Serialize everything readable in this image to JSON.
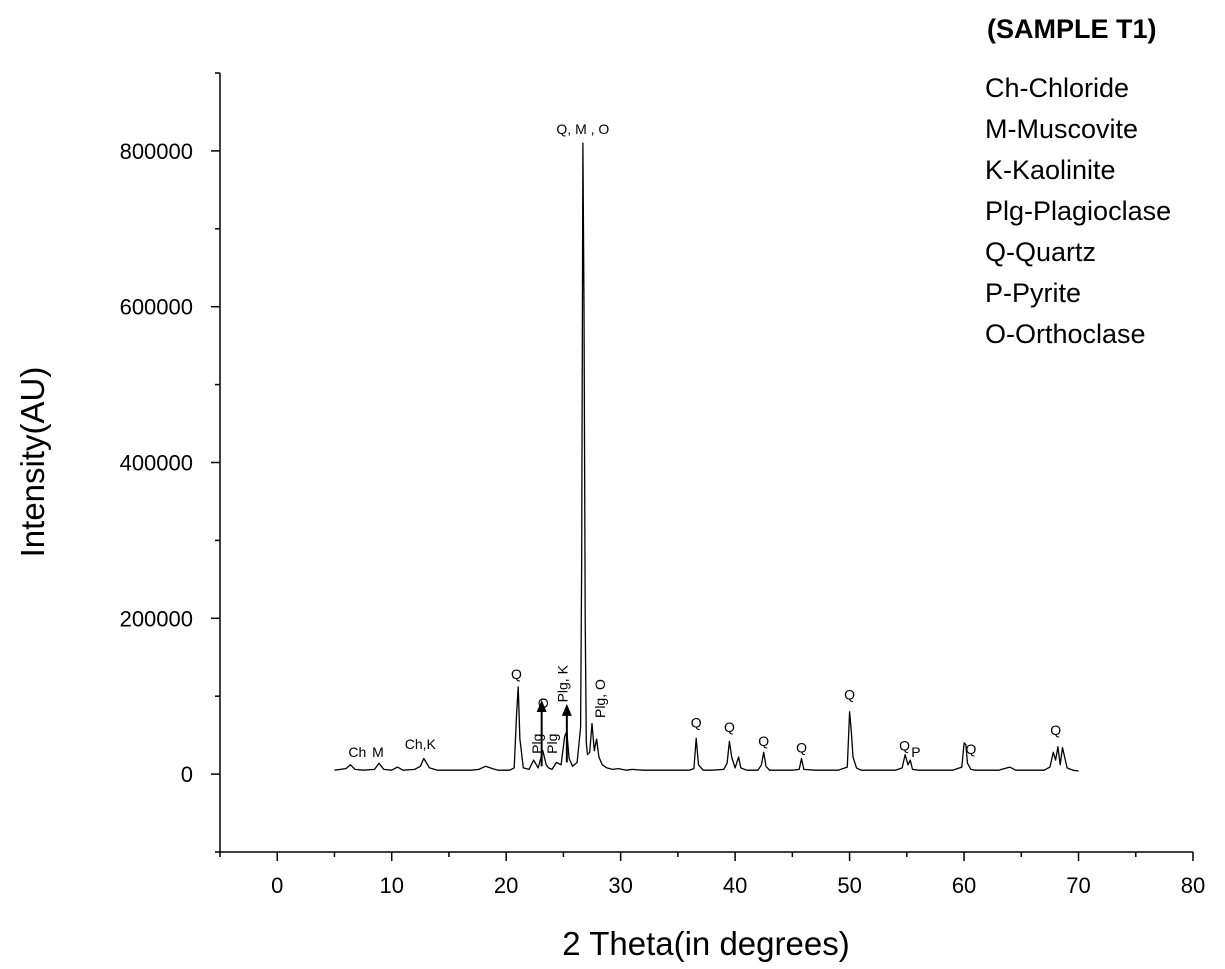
{
  "header": {
    "sample_title": "(SAMPLE T1)"
  },
  "legend": {
    "items": [
      "Ch-Chloride",
      "M-Muscovite",
      "K-Kaolinite",
      "Plg-Plagioclase",
      "Q-Quartz",
      "P-Pyrite",
      "O-Orthoclase"
    ]
  },
  "chart_data": {
    "type": "line",
    "title": "(SAMPLE T1)",
    "xlabel": "2 Theta(in degrees)",
    "ylabel": "Intensity(AU)",
    "xlim": [
      -5,
      80
    ],
    "ylim": [
      -100000,
      900000
    ],
    "x_ticks": [
      0,
      10,
      20,
      30,
      40,
      50,
      60,
      70,
      80
    ],
    "y_ticks": [
      0,
      200000,
      400000,
      600000,
      800000
    ],
    "grid": false,
    "line_color": "#000000",
    "series": [
      {
        "x": [
          5,
          6,
          6.4,
          6.8,
          7.5,
          8.5,
          8.9,
          9.3,
          10,
          10.5,
          11,
          12,
          12.5,
          12.8,
          13.3,
          14,
          15,
          16,
          17,
          17.6,
          18.2,
          18.8,
          19.3,
          19.8,
          20.3,
          20.7,
          20.9,
          21.05,
          21.2,
          21.5,
          22,
          22.4,
          22.8,
          23.2,
          23.5,
          23.7,
          24,
          24.4,
          24.8,
          25.1,
          25.3,
          25.5,
          25.8,
          26.2,
          26.5,
          26.6,
          26.7,
          26.8,
          26.9,
          27.0,
          27.1,
          27.3,
          27.5,
          27.7,
          27.9,
          28.1,
          28.4,
          28.8,
          29.3,
          29.8,
          30.5,
          31,
          32,
          33,
          34,
          35,
          36,
          36.4,
          36.6,
          36.8,
          37.2,
          38,
          39,
          39.3,
          39.5,
          39.7,
          40,
          40.3,
          40.5,
          41,
          42,
          42.3,
          42.5,
          42.7,
          43,
          44,
          45,
          45.6,
          45.8,
          46,
          47,
          48,
          49,
          49.8,
          50,
          50.15,
          50.3,
          50.6,
          51,
          52,
          53,
          54,
          54.6,
          54.85,
          55.1,
          55.3,
          55.5,
          56,
          57,
          58,
          59,
          59.8,
          60,
          60.15,
          60.3,
          60.6,
          61,
          62,
          63,
          64,
          64.5,
          65,
          66,
          67,
          67.5,
          67.8,
          68.0,
          68.2,
          68.4,
          68.6,
          69,
          69.5,
          70
        ],
        "y": [
          5000,
          7000,
          12000,
          6000,
          5000,
          6000,
          14000,
          6000,
          5000,
          9000,
          5000,
          6000,
          10000,
          20000,
          8000,
          5000,
          5000,
          5000,
          5000,
          6000,
          10000,
          7000,
          5000,
          5000,
          5000,
          8000,
          75000,
          112000,
          45000,
          8000,
          6000,
          18000,
          8000,
          30000,
          12000,
          8000,
          6000,
          15000,
          12000,
          48000,
          55000,
          20000,
          10000,
          15000,
          60000,
          280000,
          810000,
          600000,
          200000,
          40000,
          25000,
          28000,
          65000,
          30000,
          45000,
          22000,
          12000,
          8000,
          6000,
          7000,
          5000,
          6000,
          5000,
          5000,
          5000,
          5000,
          5000,
          7000,
          46000,
          12000,
          5000,
          5000,
          6000,
          14000,
          42000,
          22000,
          8000,
          22000,
          8000,
          5000,
          5000,
          12000,
          28000,
          10000,
          5000,
          5000,
          5000,
          6000,
          20000,
          6000,
          5000,
          5000,
          5000,
          9000,
          80000,
          55000,
          22000,
          8000,
          5000,
          5000,
          5000,
          5000,
          8000,
          25000,
          12000,
          18000,
          6000,
          5000,
          5000,
          5000,
          5000,
          9000,
          40000,
          38000,
          14000,
          6000,
          5000,
          5000,
          5000,
          9000,
          5000,
          5000,
          5000,
          5000,
          9000,
          28000,
          18000,
          35000,
          12000,
          34000,
          8000,
          5000,
          4000
        ]
      }
    ],
    "peak_labels": [
      {
        "text": "Ch",
        "x": 7.0,
        "y": 22000
      },
      {
        "text": "M",
        "x": 8.8,
        "y": 22000
      },
      {
        "text": "Ch,K",
        "x": 12.5,
        "y": 32000
      },
      {
        "text": "Q",
        "x": 20.9,
        "y": 122000
      },
      {
        "text": "Plg",
        "x": 22.7,
        "y": 26000,
        "rotate": true
      },
      {
        "text": "O",
        "x": 23.2,
        "y": 84000,
        "rotate": true
      },
      {
        "text": "Plg",
        "x": 24.0,
        "y": 26000,
        "rotate": true
      },
      {
        "text": "Plg, K",
        "x": 24.9,
        "y": 92000,
        "rotate": true
      },
      {
        "text": "Q, M , O",
        "x": 26.7,
        "y": 822000
      },
      {
        "text": "Plg, O",
        "x": 28.2,
        "y": 72000,
        "rotate": true
      },
      {
        "text": "Q",
        "x": 36.6,
        "y": 60000
      },
      {
        "text": "Q",
        "x": 39.5,
        "y": 54000
      },
      {
        "text": "Q",
        "x": 42.5,
        "y": 36000
      },
      {
        "text": "Q",
        "x": 45.8,
        "y": 28000
      },
      {
        "text": "Q",
        "x": 50.0,
        "y": 96000
      },
      {
        "text": "Q",
        "x": 54.8,
        "y": 30000
      },
      {
        "text": "P",
        "x": 55.8,
        "y": 22000
      },
      {
        "text": "Q",
        "x": 60.6,
        "y": 26000
      },
      {
        "text": "Q",
        "x": 68.0,
        "y": 50000
      }
    ],
    "arrows": [
      {
        "x": 23.1,
        "y_from": 10000,
        "y_to": 90000
      },
      {
        "x": 25.3,
        "y_from": 15000,
        "y_to": 85000
      }
    ]
  }
}
